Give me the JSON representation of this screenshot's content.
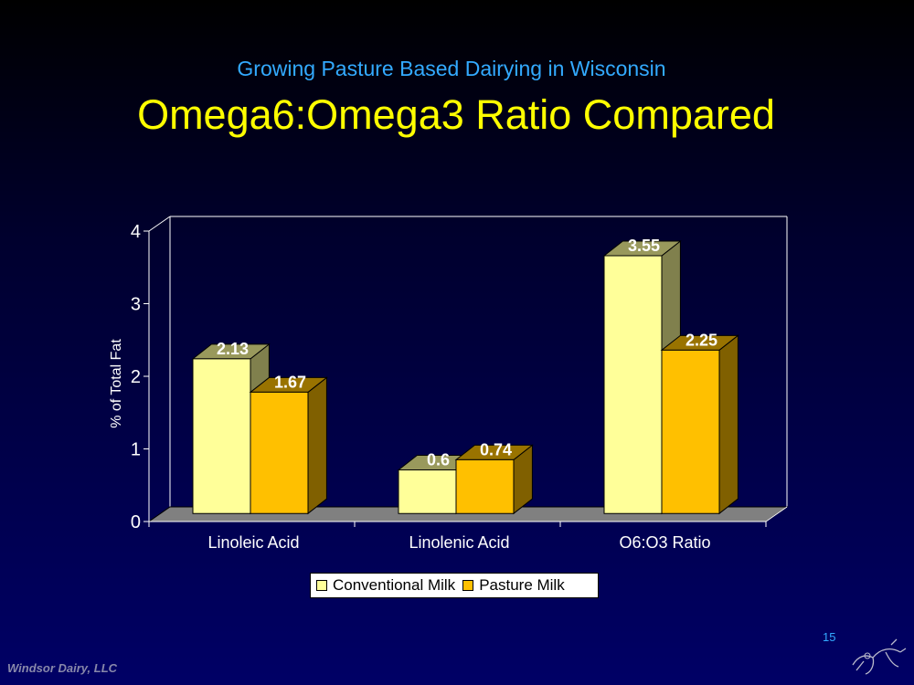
{
  "slide": {
    "subtitle": "Growing Pasture Based Dairying in Wisconsin",
    "title": "Omega6:Omega3 Ratio Compared",
    "page_number": "15",
    "footer": "Windsor Dairy, LLC"
  },
  "colors": {
    "conventional": "#ffff99",
    "pasture": "#ffc000",
    "label": "#ffffff"
  },
  "chart_data": {
    "type": "bar",
    "categories": [
      "Linoleic Acid",
      "Linolenic Acid",
      "O6:O3 Ratio"
    ],
    "series": [
      {
        "name": "Conventional Milk",
        "values": [
          2.13,
          0.6,
          3.55
        ],
        "labels": [
          "2.13",
          "0.6",
          "3.55"
        ]
      },
      {
        "name": "Pasture Milk",
        "values": [
          1.67,
          0.74,
          2.25
        ],
        "labels": [
          "1.67",
          "0.74",
          "2.25"
        ]
      }
    ],
    "ylabel": "% of Total Fat",
    "ylim": [
      0,
      4
    ],
    "yticks": [
      "0",
      "1",
      "2",
      "3",
      "4"
    ],
    "legend": "bottom"
  }
}
